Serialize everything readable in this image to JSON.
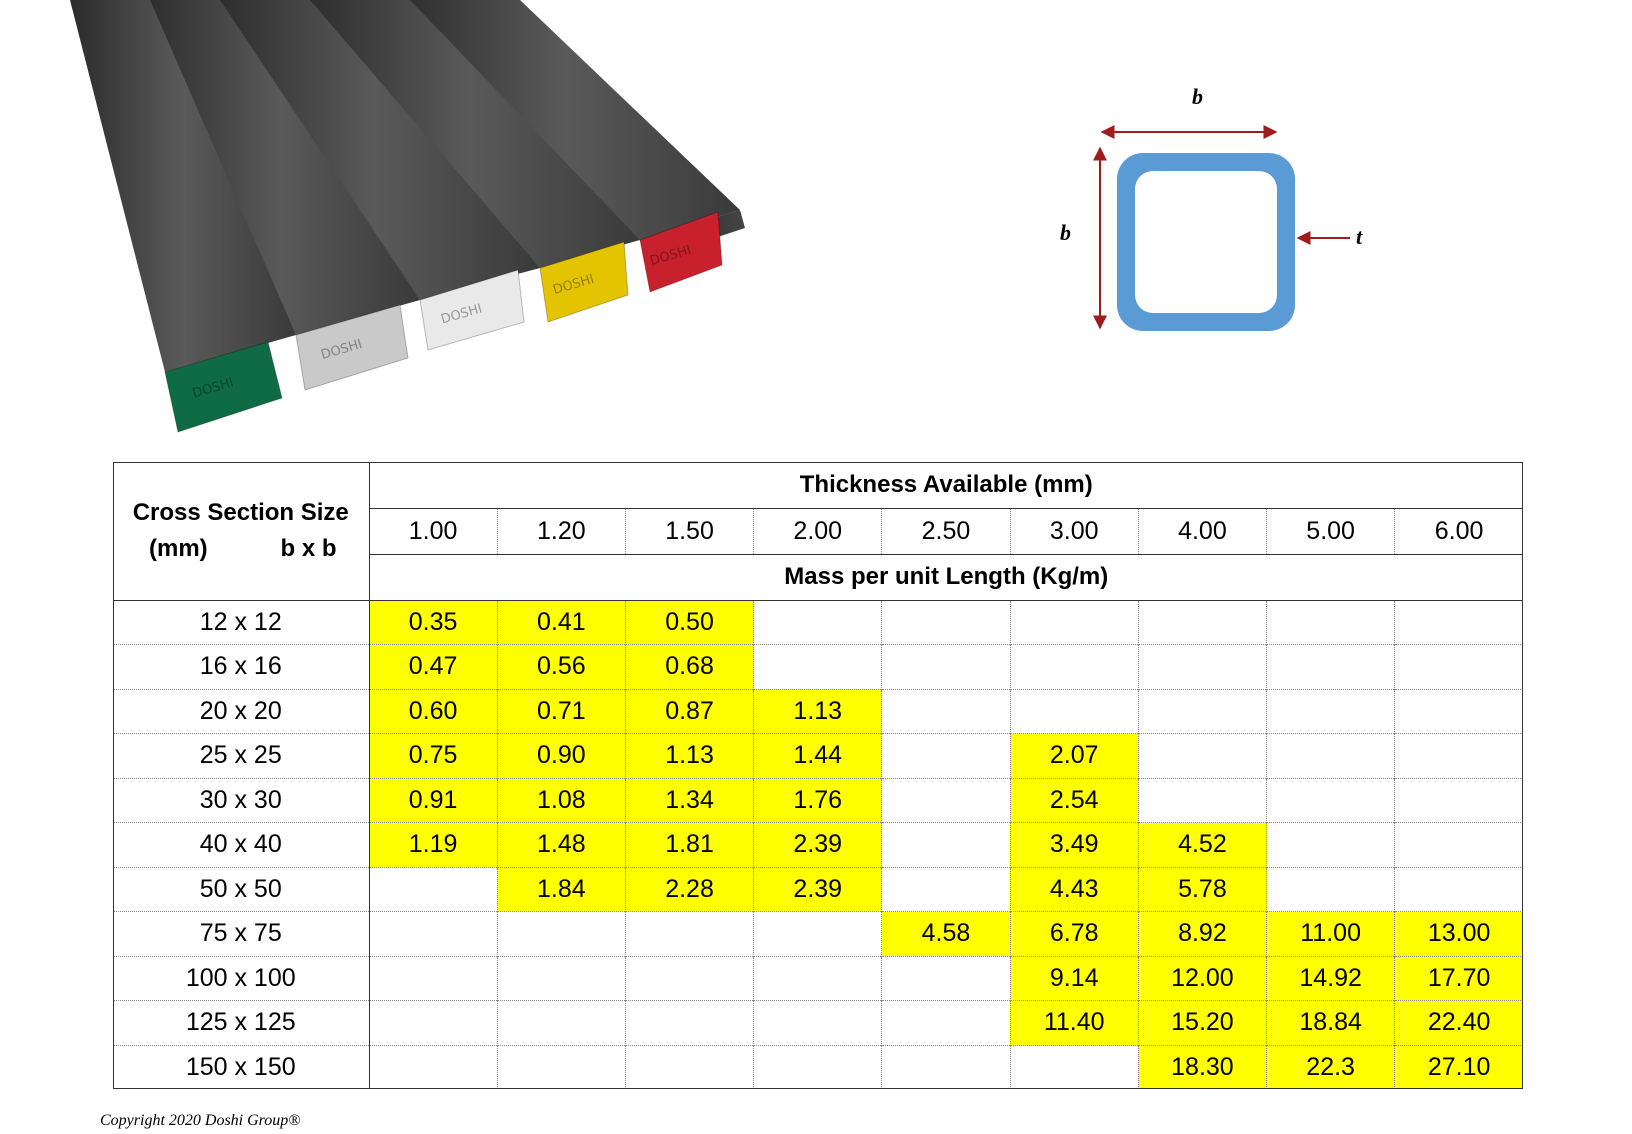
{
  "product_image": {
    "caps": [
      {
        "color": "#0e6b43"
      },
      {
        "color": "#c9c9c9"
      },
      {
        "color": "#e9e9e9"
      },
      {
        "color": "#e4c400"
      },
      {
        "color": "#c8202c"
      }
    ],
    "cap_text": "DOSHI"
  },
  "diagram": {
    "label_width": "b",
    "label_height": "b",
    "label_thickness": "t",
    "tube_color": "#5b9bd5",
    "arrow_color": "#a01c1c"
  },
  "table": {
    "corner_label_line1": "Cross Section Size",
    "corner_label_mm": "(mm)",
    "corner_label_bxb": "b x b",
    "thickness_header": "Thickness Available (mm)",
    "mass_header": "Mass per unit Length (Kg/m)",
    "highlight_color": "#ffff00",
    "thicknesses": [
      "1.00",
      "1.20",
      "1.50",
      "2.00",
      "2.50",
      "3.00",
      "4.00",
      "5.00",
      "6.00"
    ],
    "rows": [
      {
        "size": "12 x 12",
        "values": [
          "0.35",
          "0.41",
          "0.50",
          "",
          "",
          "",
          "",
          "",
          ""
        ]
      },
      {
        "size": "16 x 16",
        "values": [
          "0.47",
          "0.56",
          "0.68",
          "",
          "",
          "",
          "",
          "",
          ""
        ]
      },
      {
        "size": "20 x 20",
        "values": [
          "0.60",
          "0.71",
          "0.87",
          "1.13",
          "",
          "",
          "",
          "",
          ""
        ]
      },
      {
        "size": "25 x 25",
        "values": [
          "0.75",
          "0.90",
          "1.13",
          "1.44",
          "",
          "2.07",
          "",
          "",
          ""
        ]
      },
      {
        "size": "30 x 30",
        "values": [
          "0.91",
          "1.08",
          "1.34",
          "1.76",
          "",
          "2.54",
          "",
          "",
          ""
        ]
      },
      {
        "size": "40 x 40",
        "values": [
          "1.19",
          "1.48",
          "1.81",
          "2.39",
          "",
          "3.49",
          "4.52",
          "",
          ""
        ]
      },
      {
        "size": "50 x 50",
        "values": [
          "",
          "1.84",
          "2.28",
          "2.39",
          "",
          "4.43",
          "5.78",
          "",
          ""
        ]
      },
      {
        "size": "75 x 75",
        "values": [
          "",
          "",
          "",
          "",
          "4.58",
          "6.78",
          "8.92",
          "11.00",
          "13.00"
        ]
      },
      {
        "size": "100 x 100",
        "values": [
          "",
          "",
          "",
          "",
          "",
          "9.14",
          "12.00",
          "14.92",
          "17.70"
        ]
      },
      {
        "size": "125 x 125",
        "values": [
          "",
          "",
          "",
          "",
          "",
          "11.40",
          "15.20",
          "18.84",
          "22.40"
        ]
      },
      {
        "size": "150 x 150",
        "values": [
          "",
          "",
          "",
          "",
          "",
          "",
          "18.30",
          "22.3",
          "27.10"
        ]
      }
    ]
  },
  "copyright": "Copyright 2020 Doshi Group®"
}
